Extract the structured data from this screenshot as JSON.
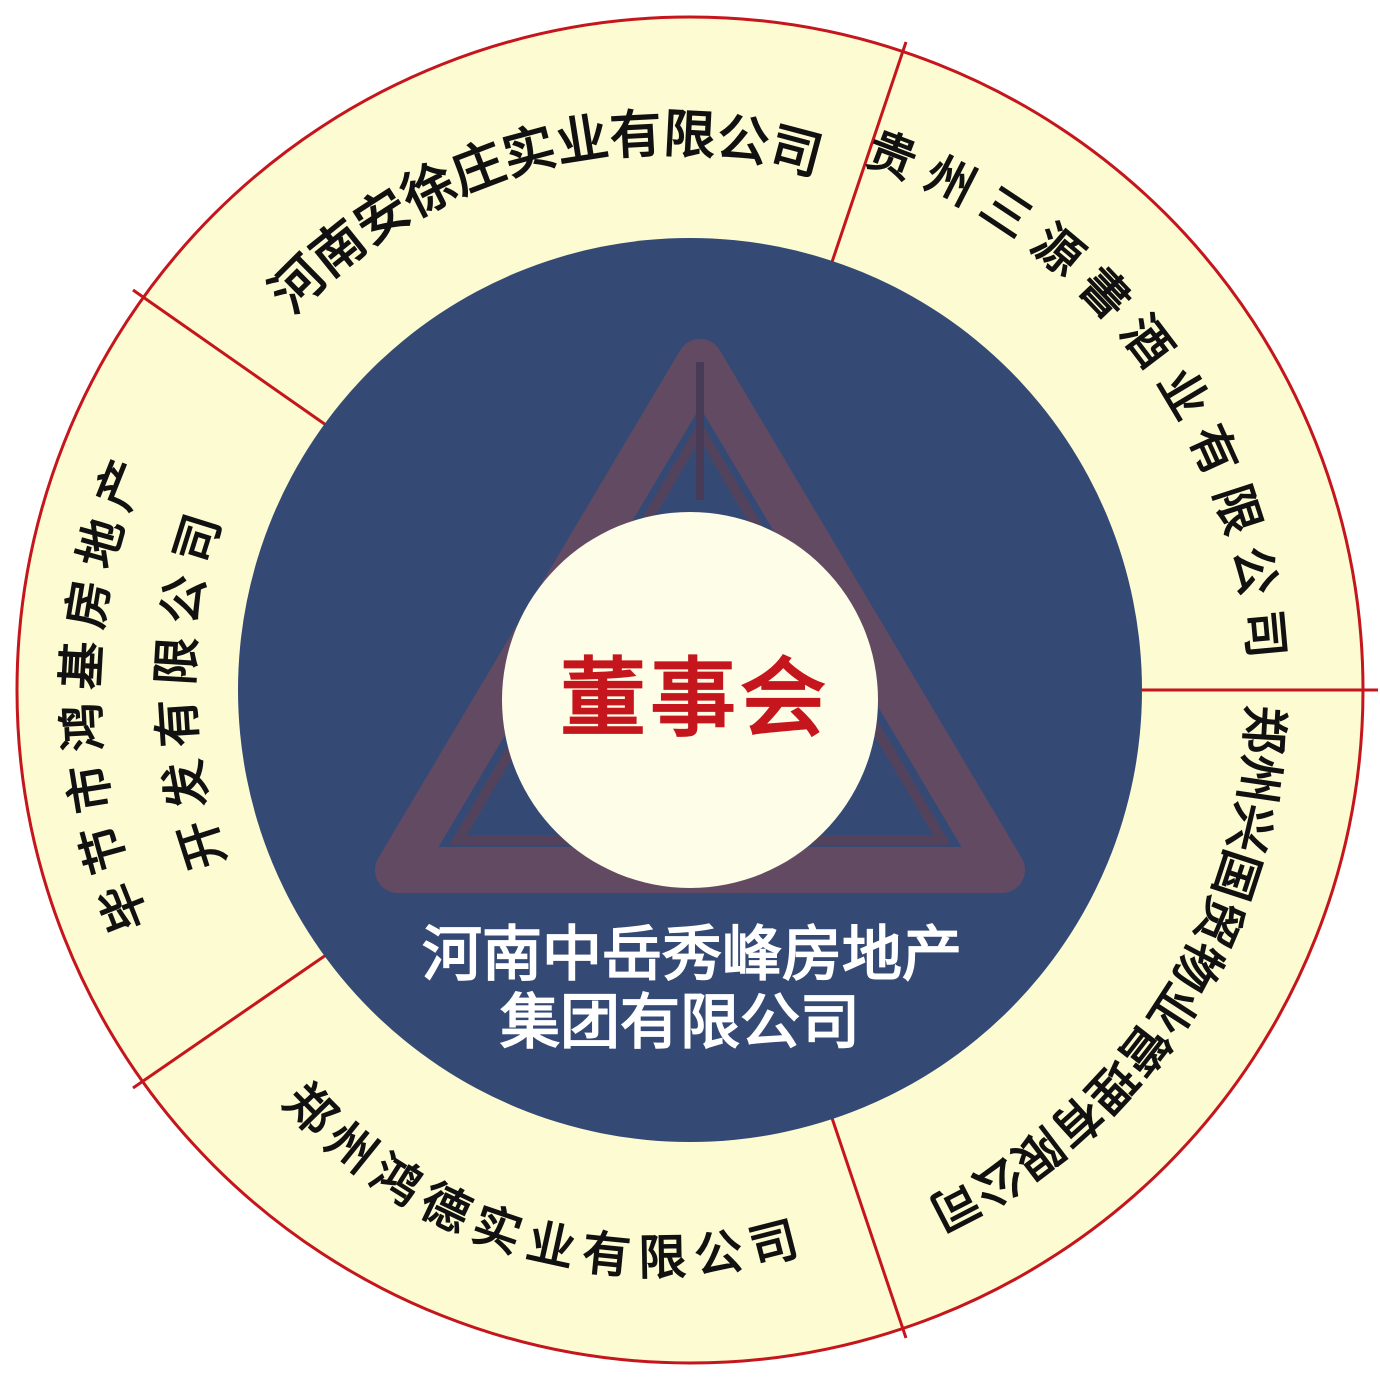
{
  "center": {
    "label": "董事会",
    "label_color": "#c4161c",
    "fill": "#fefde8"
  },
  "group": {
    "line1": "河南中岳秀峰房地产",
    "line2": "集团有限公司",
    "fill": "#344a75",
    "text_color": "#ffffff"
  },
  "ring": {
    "fill": "#fdfbd2",
    "border_color": "#c4161c"
  },
  "logo": {
    "icon": "triangle-logo-icon",
    "color": "#8a4a55"
  },
  "subsidiaries": [
    {
      "name": "河南安徐庄实业有限公司"
    },
    {
      "name": "贵州三源書酒业有限公司"
    },
    {
      "name": "郑州兴国贸物业管理有限公司"
    },
    {
      "name": "郑州鸿德实业有限公司"
    },
    {
      "name_line1": "毕节市鸿基房地产",
      "name_line2": "开发有限公司"
    }
  ]
}
